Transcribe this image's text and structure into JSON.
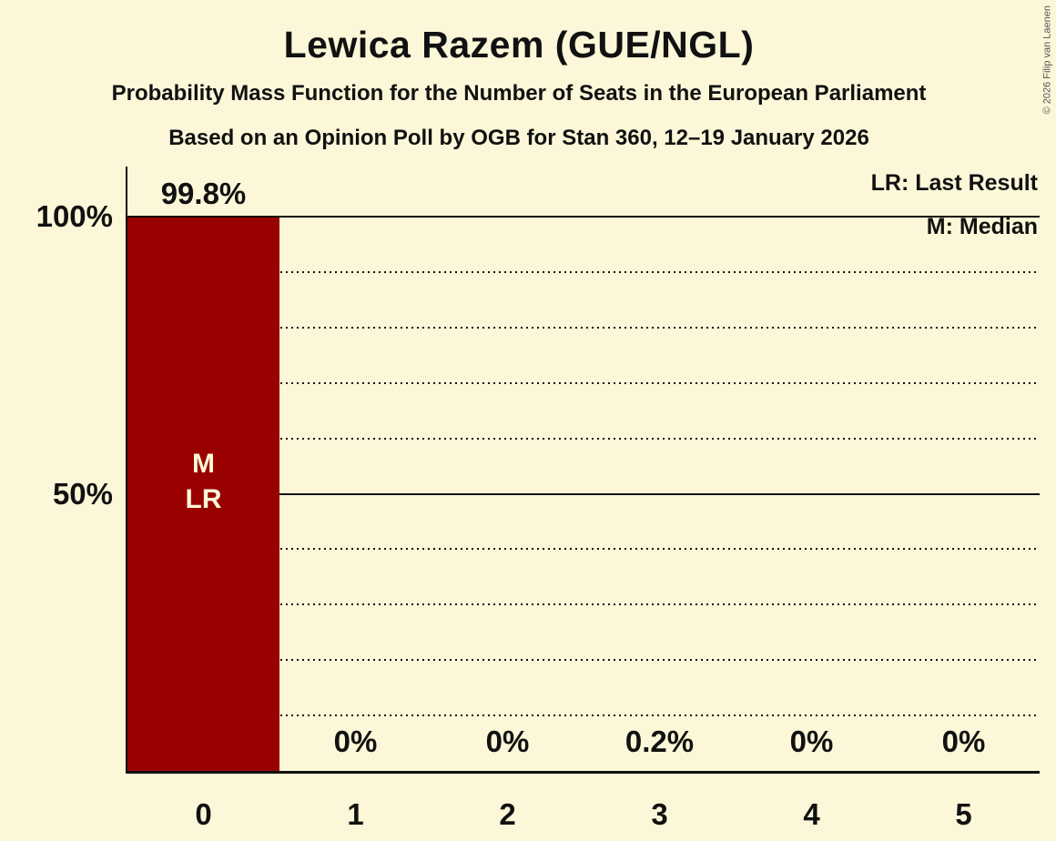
{
  "title": "Lewica Razem (GUE/NGL)",
  "subtitle": "Probability Mass Function for the Number of Seats in the European Parliament",
  "poll_line": "Based on an Opinion Poll by OGB for Stan 360, 12–19 January 2026",
  "copyright": "© 2026 Filip van Laenen",
  "legend": {
    "last_result": "LR: Last Result",
    "median": "M: Median"
  },
  "colors": {
    "background": "#fcf7d8",
    "bar": "#990000",
    "text": "#111111",
    "bar_label": "#fcf7d8"
  },
  "chart_data": {
    "type": "bar",
    "title": "Lewica Razem (GUE/NGL)",
    "categories": [
      "0",
      "1",
      "2",
      "3",
      "4",
      "5"
    ],
    "values": [
      99.8,
      0,
      0,
      0.2,
      0,
      0
    ],
    "value_labels": [
      "99.8%",
      "0%",
      "0%",
      "0.2%",
      "0%",
      "0%"
    ],
    "bar_annotations": [
      [
        "M",
        "LR"
      ],
      [],
      [],
      [],
      [],
      []
    ],
    "xlabel": "",
    "ylabel": "",
    "ylim": [
      0,
      100
    ],
    "y_ticks": [
      {
        "value": 100,
        "label": "100%"
      },
      {
        "value": 50,
        "label": "50%"
      }
    ],
    "solid_gridlines": [
      100,
      50
    ],
    "dotted_gridlines": [
      90,
      80,
      70,
      60,
      40,
      30,
      20,
      10
    ],
    "grid": true,
    "legend_position": "top-right"
  }
}
